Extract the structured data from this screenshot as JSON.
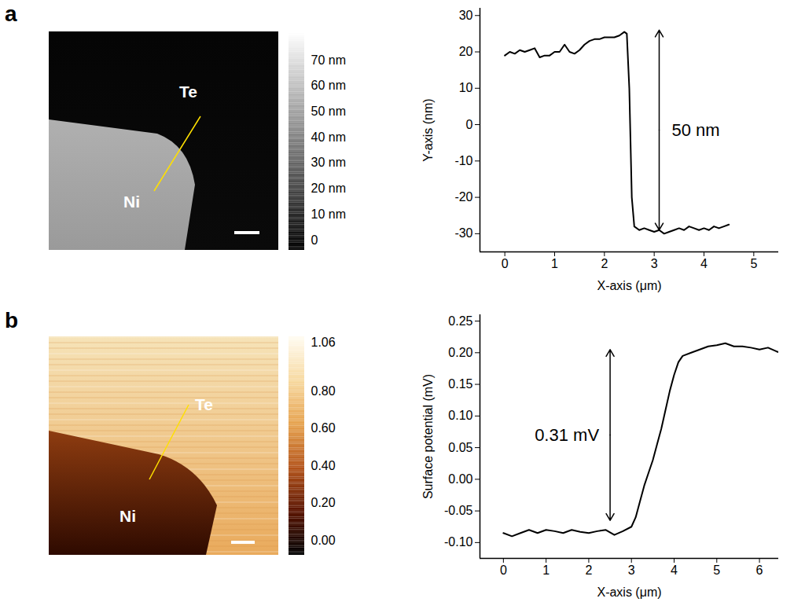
{
  "panel_letters": [
    "a",
    "b"
  ],
  "images": [
    {
      "labels": [
        "Te",
        "Ni"
      ],
      "colorbar": {
        "range": [
          -4,
          81
        ],
        "ticks": [
          {
            "value": 0,
            "label": "0"
          },
          {
            "value": 10,
            "label": "10 nm"
          },
          {
            "value": 20,
            "label": "20 nm"
          },
          {
            "value": 30,
            "label": "30 nm"
          },
          {
            "value": 40,
            "label": "40 nm"
          },
          {
            "value": 50,
            "label": "50 nm"
          },
          {
            "value": 60,
            "label": "60 nm"
          },
          {
            "value": 70,
            "label": "70 nm"
          }
        ]
      }
    },
    {
      "labels": [
        "Te",
        "Ni"
      ],
      "colorbar": {
        "range": [
          -0.08,
          1.09
        ],
        "ticks": [
          {
            "value": 0,
            "label": "0.00"
          },
          {
            "value": 0.2,
            "label": "0.20"
          },
          {
            "value": 0.4,
            "label": "0.40"
          },
          {
            "value": 0.6,
            "label": "0.60"
          },
          {
            "value": 0.8,
            "label": "0.80"
          },
          {
            "value": 1.06,
            "label": "1.06"
          }
        ]
      }
    }
  ],
  "chart_data": [
    {
      "type": "line",
      "x_label": "X-axis (μm)",
      "y_label": "Y-axis (nm)",
      "xlim": [
        -0.5,
        5.5
      ],
      "xticks": [
        0,
        1,
        2,
        3,
        4,
        5
      ],
      "ylim": [
        -35,
        32
      ],
      "yticks": [
        -30,
        -20,
        -10,
        0,
        10,
        20,
        30
      ],
      "grid": false,
      "color": "#000000",
      "x": [
        0,
        0.1,
        0.2,
        0.3,
        0.4,
        0.5,
        0.6,
        0.7,
        0.8,
        0.9,
        1.0,
        1.1,
        1.2,
        1.3,
        1.4,
        1.5,
        1.6,
        1.7,
        1.8,
        1.9,
        2.0,
        2.1,
        2.2,
        2.3,
        2.4,
        2.45,
        2.5,
        2.55,
        2.6,
        2.7,
        2.8,
        2.9,
        3.0,
        3.1,
        3.2,
        3.3,
        3.4,
        3.5,
        3.6,
        3.7,
        3.8,
        3.9,
        4.0,
        4.1,
        4.2,
        4.3,
        4.4,
        4.5
      ],
      "values": [
        19,
        20,
        19.5,
        20.5,
        20,
        20.5,
        21,
        18.5,
        19,
        19,
        20,
        20,
        22,
        20,
        19.5,
        20.5,
        22,
        23,
        23.5,
        23.5,
        24,
        24,
        24,
        24.5,
        25.5,
        25,
        10,
        -20,
        -28,
        -29,
        -28.5,
        -29,
        -29.5,
        -29,
        -30,
        -29.5,
        -29,
        -28.5,
        -29,
        -28,
        -28.5,
        -29,
        -28.5,
        -29,
        -28,
        -28.5,
        -28,
        -27.5
      ],
      "annotations": [
        {
          "text": "50 nm",
          "x": 3.1,
          "y1": 26,
          "y2": -29
        }
      ]
    },
    {
      "type": "line",
      "x_label": "X-axis (μm)",
      "y_label": "Surface potential (mV)",
      "xlim": [
        -0.55,
        6.45
      ],
      "xticks": [
        0,
        1,
        2,
        3,
        4,
        5,
        6
      ],
      "ylim": [
        -0.125,
        0.26
      ],
      "yticks": [
        {
          "value": -0.1,
          "label": "-0.10"
        },
        {
          "value": -0.05,
          "label": "-0.05"
        },
        {
          "value": 0,
          "label": "0.00"
        },
        {
          "value": 0.05,
          "label": "0.05"
        },
        {
          "value": 0.1,
          "label": "0.10"
        },
        {
          "value": 0.15,
          "label": "0.15"
        },
        {
          "value": 0.2,
          "label": "0.20"
        },
        {
          "value": 0.25,
          "label": "0.25"
        }
      ],
      "grid": false,
      "color": "#000000",
      "x": [
        0,
        0.2,
        0.4,
        0.6,
        0.8,
        1.0,
        1.2,
        1.4,
        1.6,
        1.8,
        2.0,
        2.2,
        2.4,
        2.6,
        2.8,
        3.0,
        3.1,
        3.2,
        3.3,
        3.4,
        3.5,
        3.6,
        3.7,
        3.8,
        3.9,
        4.0,
        4.1,
        4.2,
        4.4,
        4.6,
        4.8,
        5.0,
        5.2,
        5.4,
        5.6,
        5.8,
        6.0,
        6.2,
        6.4,
        6.5
      ],
      "values": [
        -0.085,
        -0.09,
        -0.085,
        -0.08,
        -0.085,
        -0.08,
        -0.082,
        -0.085,
        -0.08,
        -0.083,
        -0.085,
        -0.082,
        -0.08,
        -0.088,
        -0.082,
        -0.075,
        -0.06,
        -0.035,
        -0.01,
        0.01,
        0.03,
        0.055,
        0.08,
        0.11,
        0.14,
        0.165,
        0.185,
        0.195,
        0.2,
        0.205,
        0.21,
        0.212,
        0.215,
        0.21,
        0.21,
        0.208,
        0.205,
        0.208,
        0.202,
        0.2
      ],
      "annotations": [
        {
          "text": "0.31 mV",
          "x": 2.5,
          "y1": 0.205,
          "y2": -0.065
        }
      ]
    }
  ]
}
